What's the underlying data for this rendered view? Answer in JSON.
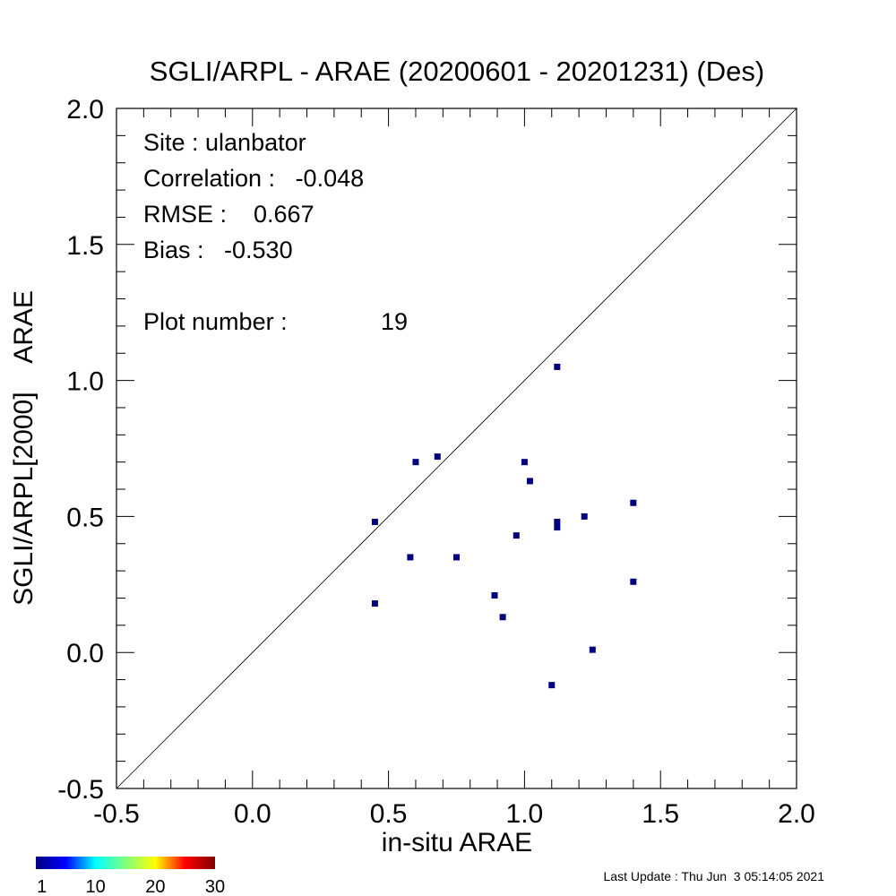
{
  "chart_data": {
    "type": "scatter",
    "title": "SGLI/ARPL - ARAE (20200601 - 20201231) (Des)",
    "xlabel": "in-situ ARAE",
    "ylabel": "SGLI/ARPL[2000]    ARAE",
    "xlim": [
      -0.5,
      2.0
    ],
    "ylim": [
      -0.5,
      2.0
    ],
    "xticks": [
      "-0.5",
      "0.0",
      "0.5",
      "1.0",
      "1.5",
      "2.0"
    ],
    "yticks": [
      "-0.5",
      "0.0",
      "0.5",
      "1.0",
      "1.5",
      "2.0"
    ],
    "reference_line": "1:1",
    "point_color": "#00007f",
    "points": [
      {
        "x": 0.45,
        "y": 0.48
      },
      {
        "x": 0.45,
        "y": 0.18
      },
      {
        "x": 0.58,
        "y": 0.35
      },
      {
        "x": 0.6,
        "y": 0.7
      },
      {
        "x": 0.68,
        "y": 0.72
      },
      {
        "x": 0.75,
        "y": 0.35
      },
      {
        "x": 0.89,
        "y": 0.21
      },
      {
        "x": 0.92,
        "y": 0.13
      },
      {
        "x": 0.97,
        "y": 0.43
      },
      {
        "x": 1.0,
        "y": 0.7
      },
      {
        "x": 1.02,
        "y": 0.63
      },
      {
        "x": 1.1,
        "y": -0.12
      },
      {
        "x": 1.12,
        "y": 1.05
      },
      {
        "x": 1.12,
        "y": 0.48
      },
      {
        "x": 1.12,
        "y": 0.46
      },
      {
        "x": 1.22,
        "y": 0.5
      },
      {
        "x": 1.25,
        "y": 0.01
      },
      {
        "x": 1.4,
        "y": 0.55
      },
      {
        "x": 1.4,
        "y": 0.26
      }
    ]
  },
  "stats": {
    "site": "Site : ulanbator",
    "correlation": "Correlation :   -0.048",
    "rmse": "RMSE :    0.667",
    "bias": "Bias :   -0.530",
    "plot_number_label": "Plot number :",
    "plot_number_value": "19"
  },
  "colorbar": {
    "labels": [
      "1",
      "10",
      "20",
      "30"
    ],
    "colors": [
      "#00007f",
      "#0000ff",
      "#00ffff",
      "#7fff7f",
      "#ffff00",
      "#ff0000",
      "#7f0000"
    ]
  },
  "footer": {
    "last_update": "Last Update : Thu Jun  3 05:14:05 2021"
  }
}
